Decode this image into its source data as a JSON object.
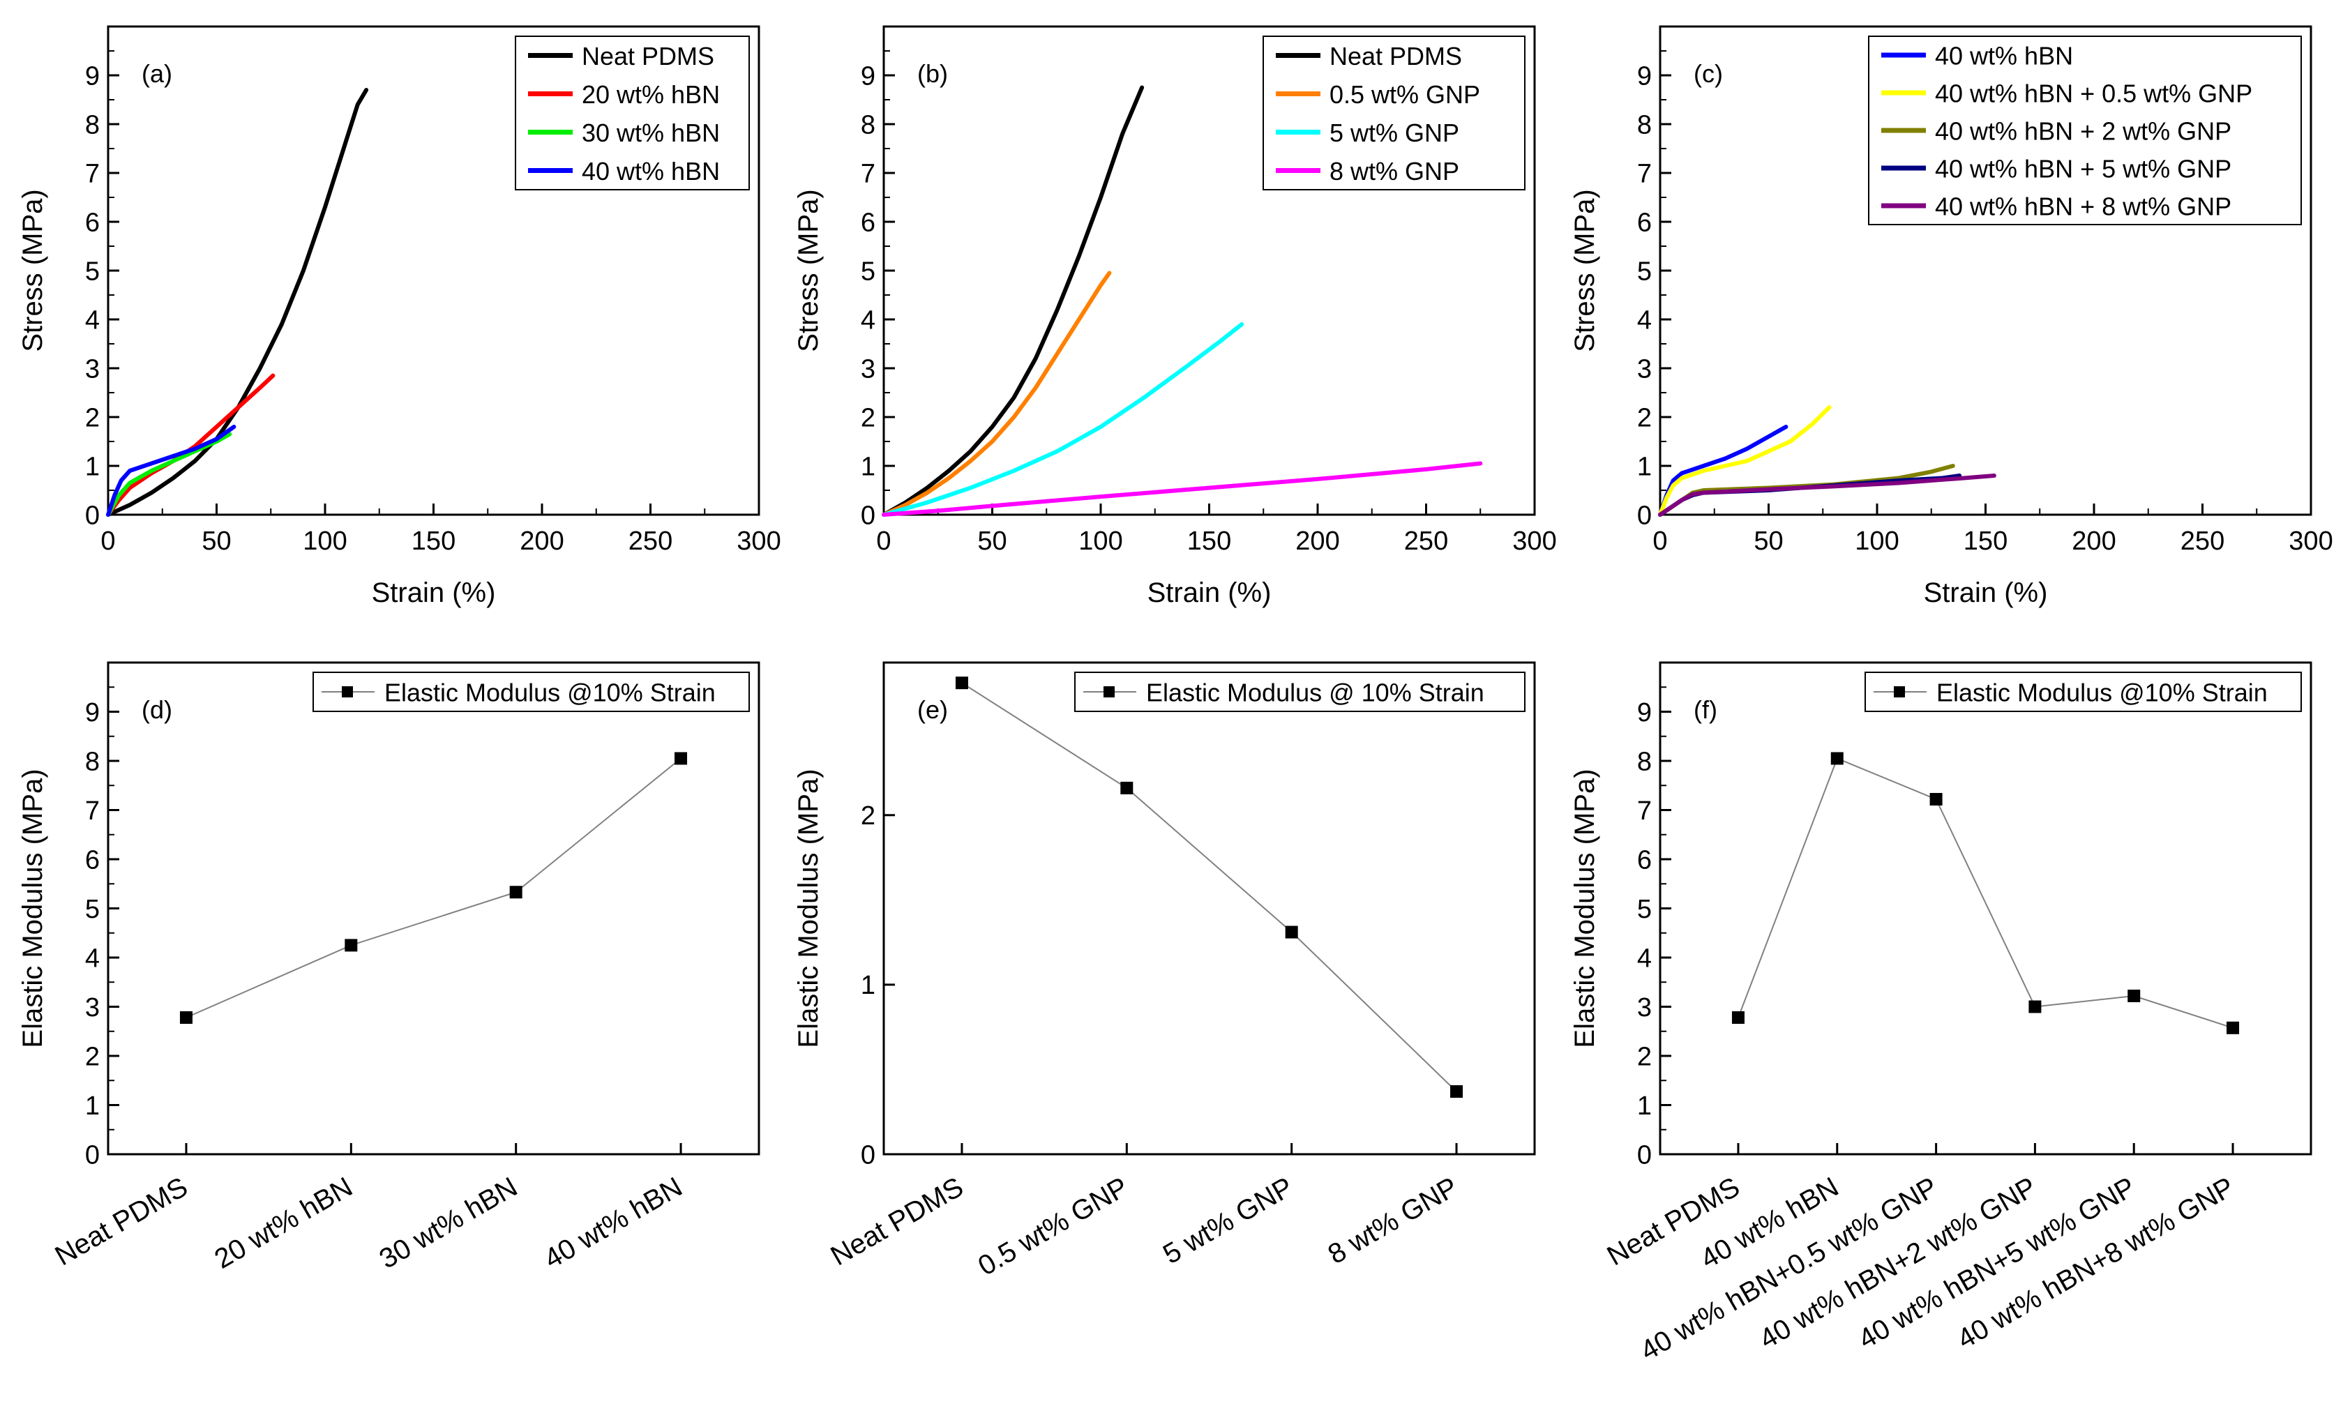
{
  "colors": {
    "black": "#000000",
    "red": "#ff0000",
    "green": "#00ee00",
    "blue": "#0000ff",
    "orange": "#ff8000",
    "cyan": "#00ffff",
    "magenta": "#ff00ff",
    "yellow": "#ffff00",
    "olive": "#808000",
    "navy": "#000080",
    "purple": "#800080",
    "gray_line": "#808080"
  },
  "chart_data": [
    {
      "type": "line",
      "panel_label": "(a)",
      "xlabel": "Strain (%)",
      "ylabel": "Stress (MPa)",
      "xlim": [
        0,
        300
      ],
      "ylim": [
        0,
        10
      ],
      "x_ticks": [
        "0",
        "50",
        "100",
        "150",
        "200",
        "250",
        "300"
      ],
      "y_ticks": [
        "0",
        "1",
        "2",
        "3",
        "4",
        "5",
        "6",
        "7",
        "8",
        "9"
      ],
      "legend_position": "top-right",
      "series": [
        {
          "name": "Neat PDMS",
          "color": "#000000",
          "points": [
            [
              0,
              0
            ],
            [
              10,
              0.2
            ],
            [
              20,
              0.45
            ],
            [
              30,
              0.75
            ],
            [
              40,
              1.1
            ],
            [
              50,
              1.55
            ],
            [
              60,
              2.2
            ],
            [
              70,
              3.0
            ],
            [
              80,
              3.9
            ],
            [
              90,
              5.0
            ],
            [
              100,
              6.3
            ],
            [
              110,
              7.7
            ],
            [
              115,
              8.4
            ],
            [
              119,
              8.7
            ]
          ]
        },
        {
          "name": "20 wt% hBN",
          "color": "#ff0000",
          "points": [
            [
              0,
              0
            ],
            [
              5,
              0.3
            ],
            [
              10,
              0.55
            ],
            [
              20,
              0.85
            ],
            [
              30,
              1.1
            ],
            [
              40,
              1.4
            ],
            [
              50,
              1.8
            ],
            [
              60,
              2.2
            ],
            [
              70,
              2.6
            ],
            [
              76,
              2.85
            ]
          ]
        },
        {
          "name": "30 wt% hBN",
          "color": "#00ee00",
          "points": [
            [
              0,
              0
            ],
            [
              5,
              0.4
            ],
            [
              10,
              0.65
            ],
            [
              20,
              0.9
            ],
            [
              30,
              1.1
            ],
            [
              40,
              1.3
            ],
            [
              50,
              1.5
            ],
            [
              56,
              1.65
            ]
          ]
        },
        {
          "name": "40 wt% hBN",
          "color": "#0000ff",
          "points": [
            [
              0,
              0
            ],
            [
              3,
              0.4
            ],
            [
              6,
              0.7
            ],
            [
              10,
              0.9
            ],
            [
              20,
              1.05
            ],
            [
              30,
              1.2
            ],
            [
              40,
              1.35
            ],
            [
              50,
              1.55
            ],
            [
              58,
              1.8
            ]
          ]
        }
      ]
    },
    {
      "type": "line",
      "panel_label": "(b)",
      "xlabel": "Strain (%)",
      "ylabel": "Stress (MPa)",
      "xlim": [
        0,
        300
      ],
      "ylim": [
        0,
        10
      ],
      "x_ticks": [
        "0",
        "50",
        "100",
        "150",
        "200",
        "250",
        "300"
      ],
      "y_ticks": [
        "0",
        "1",
        "2",
        "3",
        "4",
        "5",
        "6",
        "7",
        "8",
        "9"
      ],
      "legend_position": "top-right",
      "series": [
        {
          "name": "Neat PDMS",
          "color": "#000000",
          "points": [
            [
              0,
              0
            ],
            [
              10,
              0.25
            ],
            [
              20,
              0.55
            ],
            [
              30,
              0.9
            ],
            [
              40,
              1.3
            ],
            [
              50,
              1.8
            ],
            [
              60,
              2.4
            ],
            [
              70,
              3.2
            ],
            [
              80,
              4.2
            ],
            [
              90,
              5.3
            ],
            [
              100,
              6.5
            ],
            [
              110,
              7.8
            ],
            [
              119,
              8.75
            ]
          ]
        },
        {
          "name": "0.5 wt% GNP",
          "color": "#ff8000",
          "points": [
            [
              0,
              0
            ],
            [
              10,
              0.2
            ],
            [
              20,
              0.45
            ],
            [
              30,
              0.75
            ],
            [
              40,
              1.1
            ],
            [
              50,
              1.5
            ],
            [
              60,
              2.0
            ],
            [
              70,
              2.6
            ],
            [
              80,
              3.3
            ],
            [
              90,
              4.0
            ],
            [
              100,
              4.7
            ],
            [
              104,
              4.95
            ]
          ]
        },
        {
          "name": "5 wt% GNP",
          "color": "#00ffff",
          "points": [
            [
              0,
              0
            ],
            [
              20,
              0.25
            ],
            [
              40,
              0.55
            ],
            [
              60,
              0.9
            ],
            [
              80,
              1.3
            ],
            [
              100,
              1.8
            ],
            [
              120,
              2.4
            ],
            [
              140,
              3.05
            ],
            [
              155,
              3.55
            ],
            [
              165,
              3.9
            ]
          ]
        },
        {
          "name": "8 wt% GNP",
          "color": "#ff00ff",
          "points": [
            [
              0,
              0
            ],
            [
              25,
              0.08
            ],
            [
              50,
              0.18
            ],
            [
              100,
              0.37
            ],
            [
              150,
              0.55
            ],
            [
              200,
              0.73
            ],
            [
              250,
              0.93
            ],
            [
              275,
              1.05
            ]
          ]
        }
      ]
    },
    {
      "type": "line",
      "panel_label": "(c)",
      "xlabel": "Strain (%)",
      "ylabel": "Stress (MPa)",
      "xlim": [
        0,
        300
      ],
      "ylim": [
        0,
        10
      ],
      "x_ticks": [
        "0",
        "50",
        "100",
        "150",
        "200",
        "250",
        "300"
      ],
      "y_ticks": [
        "0",
        "1",
        "2",
        "3",
        "4",
        "5",
        "6",
        "7",
        "8",
        "9"
      ],
      "legend_position": "top-right",
      "series": [
        {
          "name": "40 wt% hBN",
          "color": "#0000ff",
          "points": [
            [
              0,
              0
            ],
            [
              3,
              0.4
            ],
            [
              6,
              0.7
            ],
            [
              10,
              0.85
            ],
            [
              20,
              1.0
            ],
            [
              30,
              1.15
            ],
            [
              40,
              1.35
            ],
            [
              50,
              1.6
            ],
            [
              58,
              1.8
            ]
          ]
        },
        {
          "name": "40 wt% hBN + 0.5 wt% GNP",
          "color": "#ffff00",
          "points": [
            [
              0,
              0
            ],
            [
              3,
              0.35
            ],
            [
              6,
              0.6
            ],
            [
              10,
              0.75
            ],
            [
              20,
              0.9
            ],
            [
              40,
              1.1
            ],
            [
              60,
              1.5
            ],
            [
              70,
              1.85
            ],
            [
              78,
              2.2
            ]
          ]
        },
        {
          "name": "40 wt% hBN + 2 wt% GNP",
          "color": "#808000",
          "points": [
            [
              0,
              0
            ],
            [
              5,
              0.15
            ],
            [
              10,
              0.3
            ],
            [
              15,
              0.45
            ],
            [
              20,
              0.5
            ],
            [
              50,
              0.55
            ],
            [
              80,
              0.62
            ],
            [
              110,
              0.75
            ],
            [
              125,
              0.88
            ],
            [
              135,
              1.0
            ]
          ]
        },
        {
          "name": "40 wt% hBN + 5 wt% GNP",
          "color": "#000080",
          "points": [
            [
              0,
              0
            ],
            [
              5,
              0.15
            ],
            [
              10,
              0.3
            ],
            [
              15,
              0.4
            ],
            [
              20,
              0.45
            ],
            [
              50,
              0.5
            ],
            [
              80,
              0.6
            ],
            [
              110,
              0.7
            ],
            [
              130,
              0.75
            ],
            [
              138,
              0.8
            ]
          ]
        },
        {
          "name": "40 wt% hBN + 8 wt% GNP",
          "color": "#800080",
          "points": [
            [
              0,
              0
            ],
            [
              5,
              0.15
            ],
            [
              10,
              0.3
            ],
            [
              15,
              0.42
            ],
            [
              20,
              0.45
            ],
            [
              50,
              0.52
            ],
            [
              80,
              0.58
            ],
            [
              110,
              0.65
            ],
            [
              140,
              0.75
            ],
            [
              154,
              0.8
            ]
          ]
        }
      ]
    },
    {
      "type": "line",
      "panel_label": "(d)",
      "xlabel": "",
      "ylabel": "Elastic Modulus (MPa)",
      "ylim": [
        0,
        10
      ],
      "y_ticks": [
        "0",
        "1",
        "2",
        "3",
        "4",
        "5",
        "6",
        "7",
        "8",
        "9"
      ],
      "categories": [
        "Neat PDMS",
        "20 wt% hBN",
        "30 wt% hBN",
        "40 wt% hBN"
      ],
      "legend_position": "top-right",
      "series": [
        {
          "name": "Elastic Modulus @10% Strain",
          "values": [
            2.78,
            4.25,
            5.33,
            8.05
          ]
        }
      ]
    },
    {
      "type": "line",
      "panel_label": "(e)",
      "xlabel": "",
      "ylabel": "Elastic Modulus (MPa)",
      "ylim": [
        0,
        2.9
      ],
      "y_ticks": [
        "0",
        "1",
        "2"
      ],
      "categories": [
        "Neat PDMS",
        "0.5 wt% GNP",
        "5 wt% GNP",
        "8 wt% GNP"
      ],
      "legend_position": "top-right",
      "series": [
        {
          "name": "Elastic Modulus @ 10% Strain",
          "values": [
            2.78,
            2.16,
            1.31,
            0.37
          ]
        }
      ]
    },
    {
      "type": "line",
      "panel_label": "(f)",
      "xlabel": "",
      "ylabel": "Elastic Modulus (MPa)",
      "ylim": [
        0,
        10
      ],
      "y_ticks": [
        "0",
        "1",
        "2",
        "3",
        "4",
        "5",
        "6",
        "7",
        "8",
        "9"
      ],
      "categories": [
        "Neat PDMS",
        "40 wt% hBN",
        "40 wt% hBN+0.5 wt% GNP",
        "40 wt% hBN+2 wt% GNP",
        "40 wt% hBN+5 wt% GNP",
        "40 wt% hBN+8 wt% GNP"
      ],
      "legend_position": "top-right",
      "series": [
        {
          "name": "Elastic Modulus @10% Strain",
          "values": [
            2.78,
            8.05,
            7.22,
            3.0,
            3.22,
            2.57
          ]
        }
      ]
    }
  ]
}
